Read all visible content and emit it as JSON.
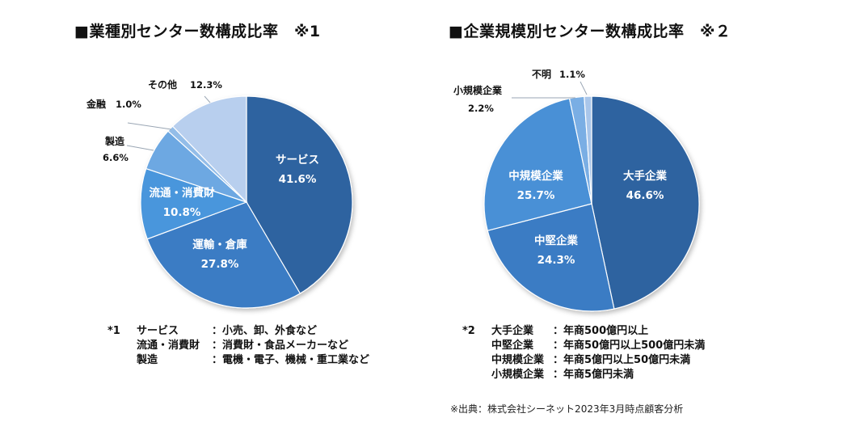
{
  "titles": {
    "left": "■業種別センター数構成比率　※1",
    "right": "■企業規模別センター数構成比率　※２"
  },
  "chart_data": [
    {
      "type": "pie",
      "title": "■業種別センター数構成比率　※1",
      "slices": [
        {
          "label": "サービス",
          "value": 41.6,
          "display": "41.6%",
          "color": "#2e63a0"
        },
        {
          "label": "運輸・倉庫",
          "value": 27.8,
          "display": "27.8%",
          "color": "#3a7cc4"
        },
        {
          "label": "流通・消費財",
          "value": 10.8,
          "display": "10.8%",
          "color": "#4a96dc"
        },
        {
          "label": "製造",
          "value": 6.6,
          "display": "6.6%",
          "color": "#6da8e2"
        },
        {
          "label": "金融",
          "value": 1.0,
          "display": "1.0%",
          "color": "#93bde8"
        },
        {
          "label": "その他",
          "value": 12.3,
          "display": "12.3%",
          "color": "#b8cfee"
        }
      ]
    },
    {
      "type": "pie",
      "title": "■企業規模別センター数構成比率　※２",
      "slices": [
        {
          "label": "大手企業",
          "value": 46.6,
          "display": "46.6%",
          "color": "#2e63a0"
        },
        {
          "label": "中堅企業",
          "value": 24.3,
          "display": "24.3%",
          "color": "#3a7cc4"
        },
        {
          "label": "中規模企業",
          "value": 25.7,
          "display": "25.7%",
          "color": "#4a90d6"
        },
        {
          "label": "小規模企業",
          "value": 2.2,
          "display": "2.2%",
          "color": "#7aaee4"
        },
        {
          "label": "不明",
          "value": 1.1,
          "display": "1.1%",
          "color": "#a9c6ea"
        }
      ]
    }
  ],
  "notes_left": {
    "mark": "*1",
    "rows": [
      {
        "term": "サービス",
        "desc": "：小売、卸、外食など"
      },
      {
        "term": "流通・消費財",
        "desc": "：消費財・食品メーカーなど"
      },
      {
        "term": "製造",
        "desc": "：電機・電子、機械・重工業など"
      }
    ]
  },
  "notes_right": {
    "mark": "*2",
    "rows": [
      {
        "term": "大手企業",
        "desc": "：年商500億円以上"
      },
      {
        "term": "中堅企業",
        "desc": "：年商50億円以上500億円未満"
      },
      {
        "term": "中規模企業",
        "desc": "：年商5億円以上50億円未満"
      },
      {
        "term": "小規模企業",
        "desc": "：年商5億円未満"
      }
    ]
  },
  "source": "※出典：株式会社シーネット2023年3月時点顧客分析"
}
